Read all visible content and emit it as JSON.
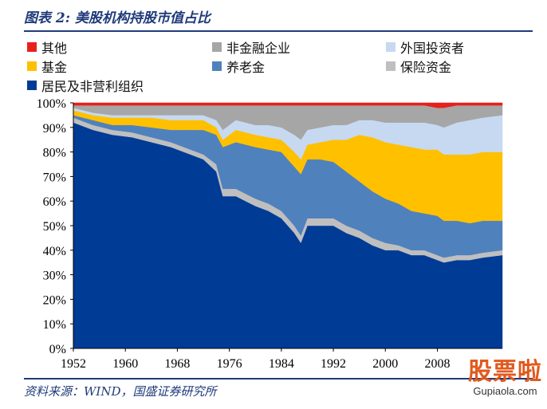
{
  "figure": {
    "title": "图表 2: 美股机构持股市值占比",
    "source": "资料来源：WIND，国盛证券研究所"
  },
  "watermark": {
    "main": "股票啦",
    "sub": "Gupiaola.com"
  },
  "chart_data": {
    "type": "area",
    "stacked": true,
    "normalized": true,
    "title": "",
    "xlabel": "",
    "ylabel": "",
    "xlim": [
      1952,
      2018
    ],
    "ylim": [
      0,
      100
    ],
    "x_ticks": [
      1952,
      1960,
      1968,
      1976,
      1984,
      1992,
      2000,
      2008
    ],
    "y_ticks": [
      "0%",
      "10%",
      "20%",
      "30%",
      "40%",
      "50%",
      "60%",
      "70%",
      "80%",
      "90%",
      "100%"
    ],
    "grid": false,
    "legend_position": "top",
    "x": [
      1952,
      1955,
      1958,
      1961,
      1964,
      1967,
      1970,
      1972,
      1974,
      1975,
      1977,
      1980,
      1982,
      1984,
      1986,
      1987,
      1988,
      1990,
      1992,
      1994,
      1996,
      1998,
      2000,
      2002,
      2004,
      2006,
      2008,
      2009,
      2011,
      2013,
      2015,
      2018
    ],
    "series": [
      {
        "name": "居民及非营利组织",
        "color": "#003b96",
        "values": [
          92,
          89,
          87,
          86,
          84,
          82,
          79,
          77,
          72,
          62,
          62,
          58,
          56,
          53,
          47,
          43,
          50,
          50,
          50,
          47,
          45,
          42,
          40,
          40,
          38,
          38,
          36,
          35,
          36,
          36,
          37,
          38
        ]
      },
      {
        "name": "保险资金",
        "color": "#bfbfbf",
        "values": [
          2,
          2,
          2,
          2,
          2,
          2,
          2,
          2,
          3,
          3,
          3,
          3,
          3,
          3,
          3,
          3,
          3,
          3,
          3,
          3,
          3,
          3,
          3,
          2,
          2,
          2,
          2,
          2,
          2,
          2,
          2,
          2
        ]
      },
      {
        "name": "养老金",
        "color": "#4f81bd",
        "values": [
          1,
          2,
          2,
          3,
          4,
          5,
          8,
          10,
          12,
          17,
          19,
          21,
          22,
          24,
          24,
          25,
          24,
          24,
          23,
          22,
          20,
          19,
          18,
          17,
          16,
          15,
          16,
          15,
          14,
          13,
          13,
          12
        ]
      },
      {
        "name": "基金",
        "color": "#ffc000",
        "values": [
          2,
          2,
          3,
          3,
          4,
          4,
          4,
          4,
          3,
          3,
          5,
          5,
          5,
          5,
          6,
          6,
          6,
          7,
          9,
          13,
          19,
          22,
          23,
          24,
          26,
          26,
          27,
          27,
          27,
          28,
          28,
          28
        ]
      },
      {
        "name": "外国投资者",
        "color": "#c6d9f1",
        "values": [
          1,
          1,
          1,
          1,
          1,
          2,
          2,
          2,
          3,
          4,
          4,
          4,
          5,
          5,
          7,
          8,
          6,
          6,
          6,
          6,
          6,
          7,
          8,
          9,
          10,
          11,
          10,
          11,
          13,
          14,
          14,
          15
        ]
      },
      {
        "name": "非金融企业",
        "color": "#a6a6a6",
        "values": [
          1,
          3,
          4,
          4,
          4,
          4,
          4,
          4,
          6,
          10,
          6,
          8,
          8,
          9,
          12,
          14,
          10,
          9,
          8,
          8,
          6,
          6,
          7,
          7,
          7,
          7,
          7,
          8,
          7,
          6,
          5,
          4
        ]
      },
      {
        "name": "其他",
        "color": "#e8201c",
        "values": [
          1,
          1,
          1,
          1,
          1,
          1,
          1,
          1,
          1,
          1,
          1,
          1,
          1,
          1,
          1,
          1,
          1,
          1,
          1,
          1,
          1,
          1,
          1,
          1,
          1,
          1,
          2,
          2,
          1,
          1,
          1,
          1
        ]
      }
    ],
    "legend_order": [
      "其他",
      "非金融企业",
      "外国投资者",
      "基金",
      "养老金",
      "保险资金",
      "居民及非营利组织"
    ]
  }
}
